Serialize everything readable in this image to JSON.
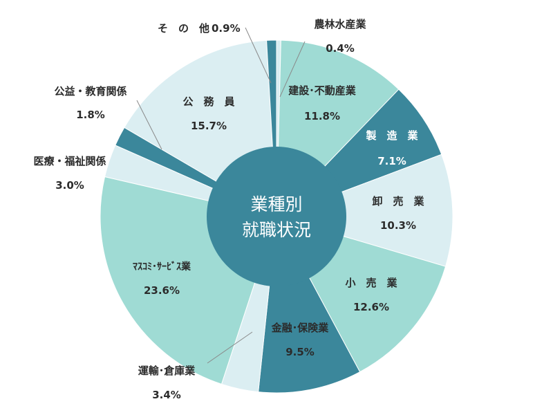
{
  "chart_data": {
    "type": "pie",
    "style": "donut",
    "center_title": [
      "業種別",
      "就職状況"
    ],
    "slices": [
      {
        "label": "農林水産業",
        "percent_label": "0.4%",
        "value": 0.4,
        "color": "#d8edf1"
      },
      {
        "label": "建設･不動産業",
        "percent_label": "11.8%",
        "value": 11.8,
        "color": "#9fdbd4"
      },
      {
        "label": "製　造　業",
        "percent_label": "7.1%",
        "value": 7.1,
        "color": "#3b879b"
      },
      {
        "label": "卸　売　業",
        "percent_label": "10.3%",
        "value": 10.3,
        "color": "#dbeef2"
      },
      {
        "label": "小　売　業",
        "percent_label": "12.6%",
        "value": 12.6,
        "color": "#9fdbd4"
      },
      {
        "label": "金融･保険業",
        "percent_label": "9.5%",
        "value": 9.5,
        "color": "#3b879b"
      },
      {
        "label": "運輸･倉庫業",
        "percent_label": "3.4%",
        "value": 3.4,
        "color": "#dbeef2"
      },
      {
        "label": "ﾏｽｺﾐ･ｻｰﾋﾞｽ業",
        "percent_label": "23.6%",
        "value": 23.6,
        "color": "#9fdbd4"
      },
      {
        "label": "医療・福祉関係",
        "percent_label": "3.0%",
        "value": 3.0,
        "color": "#dbeef2"
      },
      {
        "label": "公益・教育関係",
        "percent_label": "1.8%",
        "value": 1.8,
        "color": "#3b879b"
      },
      {
        "label": "公　務　員",
        "percent_label": "15.7%",
        "value": 15.7,
        "color": "#dbeef2"
      },
      {
        "label": "そ　の　他",
        "percent_label": "0.9%",
        "value": 0.9,
        "color": "#3b879b"
      }
    ],
    "center_color": "#3b879b"
  }
}
